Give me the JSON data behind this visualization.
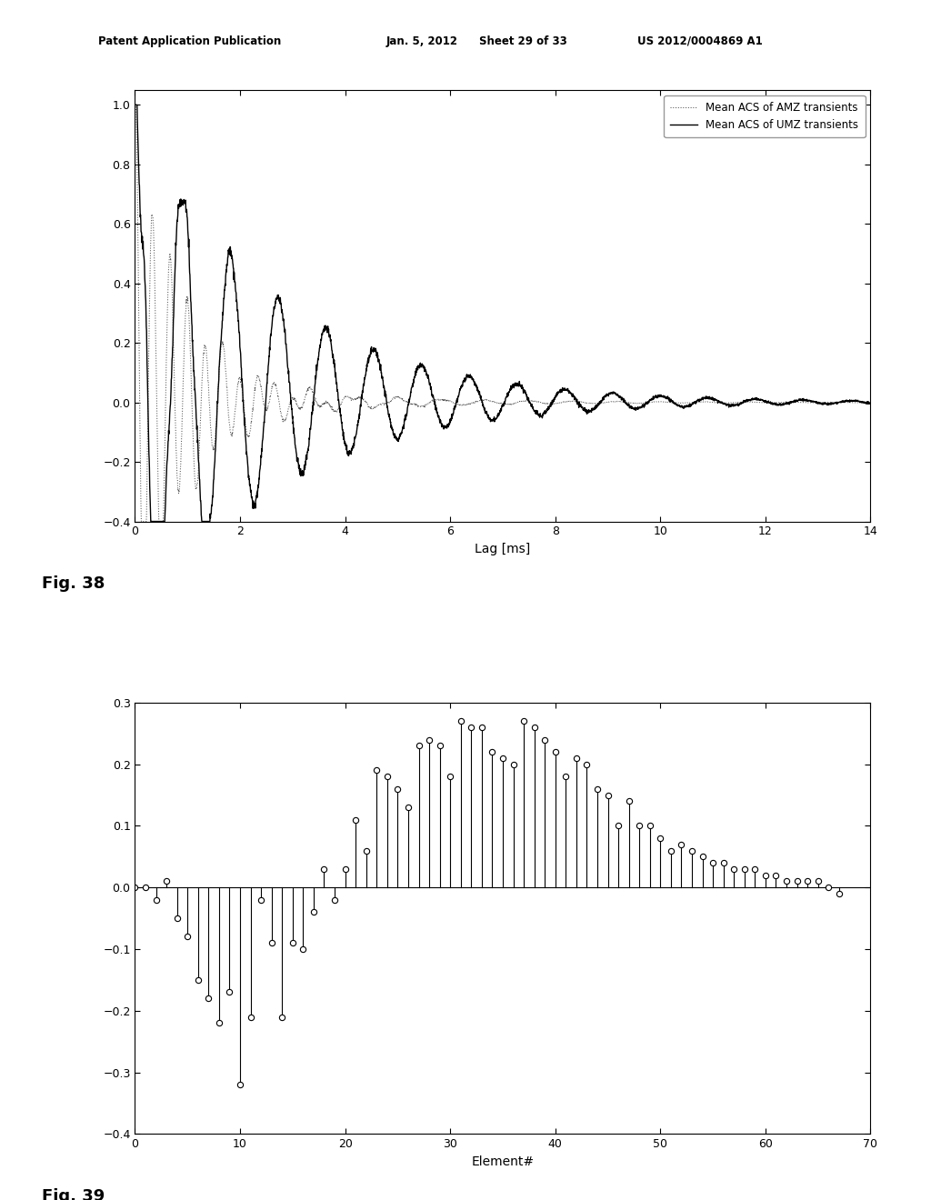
{
  "fig38": {
    "xlabel": "Lag [ms]",
    "xlim": [
      0,
      14
    ],
    "ylim": [
      -0.4,
      1.05
    ],
    "xticks": [
      0,
      2,
      4,
      6,
      8,
      10,
      12,
      14
    ],
    "yticks": [
      -0.4,
      -0.2,
      0,
      0.2,
      0.4,
      0.6,
      0.8,
      1
    ],
    "legend": [
      "Mean ACS of AMZ transients",
      "Mean ACS of UMZ transients"
    ]
  },
  "fig39": {
    "xlabel": "Element#",
    "xlim": [
      0,
      70
    ],
    "ylim": [
      -0.4,
      0.3
    ],
    "xticks": [
      0,
      10,
      20,
      30,
      40,
      50,
      60,
      70
    ],
    "yticks": [
      -0.4,
      -0.3,
      -0.2,
      -0.1,
      0,
      0.1,
      0.2,
      0.3
    ],
    "stem_data": [
      0.0,
      0.0,
      -0.02,
      0.01,
      -0.05,
      -0.08,
      -0.15,
      -0.18,
      -0.22,
      -0.17,
      -0.32,
      -0.21,
      -0.02,
      -0.09,
      -0.21,
      -0.09,
      -0.1,
      -0.04,
      0.03,
      -0.02,
      0.03,
      0.11,
      0.06,
      0.19,
      0.18,
      0.16,
      0.13,
      0.23,
      0.24,
      0.23,
      0.18,
      0.27,
      0.26,
      0.26,
      0.22,
      0.21,
      0.2,
      0.27,
      0.26,
      0.24,
      0.22,
      0.18,
      0.21,
      0.2,
      0.16,
      0.15,
      0.1,
      0.14,
      0.1,
      0.1,
      0.08,
      0.06,
      0.07,
      0.06,
      0.05,
      0.04,
      0.04,
      0.03,
      0.03,
      0.03,
      0.02,
      0.02,
      0.01,
      0.01,
      0.01,
      0.01,
      0.0,
      -0.01
    ]
  },
  "fig38_label": "Fig. 38",
  "fig39_label": "Fig. 39",
  "background_color": "#ffffff",
  "text_color": "#000000"
}
